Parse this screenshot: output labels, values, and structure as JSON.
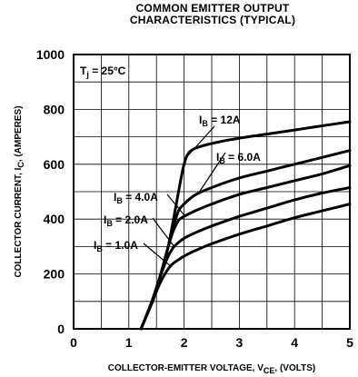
{
  "chart_data": {
    "type": "line",
    "title": "COMMON EMITTER OUTPUT",
    "subtitle": "CHARACTERISTICS (TYPICAL)",
    "xlabel": {
      "prefix": "COLLECTOR-EMITTER VOLTAGE, V",
      "sub": "CE",
      "suffix": ", (VOLTS)"
    },
    "ylabel": {
      "prefix": "COLLECTOR CURRENT, I",
      "sub": "C",
      "suffix": ", (AMPERES)"
    },
    "xlim": [
      0,
      5
    ],
    "ylim": [
      0,
      1000
    ],
    "xticks": [
      "0",
      "1",
      "2",
      "3",
      "4",
      "5"
    ],
    "yticks": [
      "0",
      "200",
      "400",
      "600",
      "800",
      "1000"
    ],
    "grid": true,
    "condition": {
      "symbol": "T",
      "sub": "j",
      "value": " = 25°C"
    },
    "series": [
      {
        "name": "12A",
        "label_prefix": "I",
        "label_sub": "B",
        "label_suffix": " = 12A",
        "x": [
          1.22,
          1.4,
          1.55,
          1.7,
          1.8,
          1.9,
          2.0,
          2.1,
          2.3,
          2.6,
          3.0,
          3.5,
          4.0,
          4.5,
          5.0
        ],
        "y": [
          0,
          90,
          180,
          290,
          390,
          500,
          600,
          645,
          665,
          680,
          695,
          710,
          725,
          740,
          755
        ]
      },
      {
        "name": "6.0A",
        "label_prefix": "I",
        "label_sub": "B",
        "label_suffix": " = 6.0A",
        "x": [
          1.22,
          1.4,
          1.55,
          1.7,
          1.8,
          1.9,
          2.0,
          2.2,
          2.5,
          3.0,
          3.5,
          4.0,
          4.5,
          5.0
        ],
        "y": [
          0,
          90,
          180,
          290,
          370,
          430,
          455,
          488,
          515,
          550,
          575,
          600,
          625,
          650
        ]
      },
      {
        "name": "4.0A",
        "label_prefix": "I",
        "label_sub": "B",
        "label_suffix": " = 4.0A",
        "x": [
          1.22,
          1.4,
          1.55,
          1.7,
          1.8,
          1.9,
          2.0,
          2.2,
          2.5,
          3.0,
          3.5,
          4.0,
          4.5,
          5.0
        ],
        "y": [
          0,
          90,
          180,
          290,
          355,
          395,
          410,
          430,
          455,
          490,
          515,
          540,
          565,
          595
        ]
      },
      {
        "name": "2.0A",
        "label_prefix": "I",
        "label_sub": "B",
        "label_suffix": " = 2.0A",
        "x": [
          1.22,
          1.4,
          1.55,
          1.7,
          1.8,
          1.9,
          2.0,
          2.2,
          2.5,
          3.0,
          3.5,
          4.0,
          4.5,
          5.0
        ],
        "y": [
          0,
          90,
          180,
          260,
          295,
          315,
          330,
          350,
          375,
          410,
          440,
          470,
          495,
          515
        ]
      },
      {
        "name": "1.0A",
        "label_prefix": "I",
        "label_sub": "B",
        "label_suffix": " = 1.0A",
        "x": [
          1.22,
          1.4,
          1.55,
          1.7,
          1.8,
          1.9,
          2.0,
          2.2,
          2.5,
          3.0,
          3.5,
          4.0,
          4.5,
          5.0
        ],
        "y": [
          0,
          85,
          160,
          215,
          238,
          252,
          265,
          285,
          310,
          345,
          375,
          405,
          430,
          455
        ]
      }
    ],
    "annotations": [
      {
        "series": "12A",
        "target": [
          2.02,
          620
        ]
      },
      {
        "series": "6.0A",
        "target": [
          2.28,
          500
        ]
      },
      {
        "series": "4.0A",
        "target": [
          2.0,
          415
        ]
      },
      {
        "series": "2.0A",
        "target": [
          1.82,
          300
        ]
      },
      {
        "series": "1.0A",
        "target": [
          1.75,
          230
        ]
      }
    ]
  }
}
